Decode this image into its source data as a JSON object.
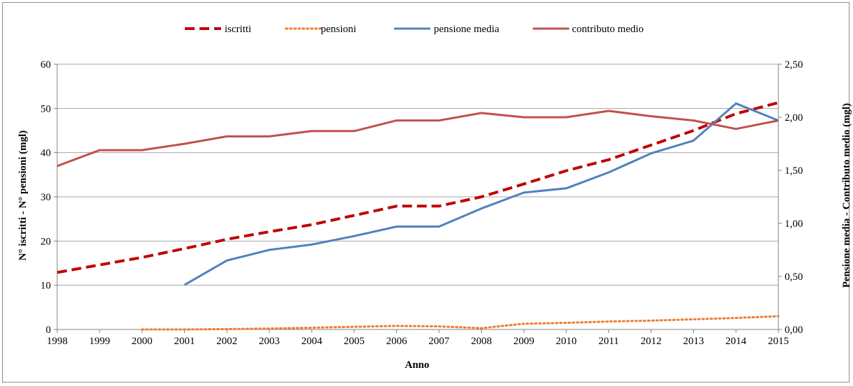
{
  "chart_data": {
    "type": "line",
    "xlabel": "Anno",
    "ylabel_left": "N° iscritti - N° pensioni (mgl)",
    "ylabel_right": "Pensione media - Contributo medio (mgl)",
    "x": [
      "1998",
      "1999",
      "2000",
      "2001",
      "2002",
      "2003",
      "2004",
      "2005",
      "2006",
      "2007",
      "2008",
      "2009",
      "2010",
      "2011",
      "2012",
      "2013",
      "2014",
      "2015"
    ],
    "ylim_left": [
      0,
      60
    ],
    "yticks_left": [
      "0",
      "10",
      "20",
      "30",
      "40",
      "50",
      "60"
    ],
    "ylim_right": [
      0,
      2.5
    ],
    "yticks_right": [
      "0,00",
      "0,50",
      "1,00",
      "1,50",
      "2,00",
      "2,50"
    ],
    "grid": true,
    "legend_position": "top",
    "series": [
      {
        "name": "iscritti",
        "axis": "left",
        "style": "dashed",
        "color": "#c00000",
        "values": [
          12.9,
          14.6,
          16.3,
          18.3,
          20.4,
          22.1,
          23.7,
          25.8,
          27.9,
          27.9,
          30.0,
          32.9,
          35.9,
          38.4,
          41.7,
          45.0,
          48.8,
          51.3
        ]
      },
      {
        "name": "pensioni",
        "axis": "left",
        "style": "dotted",
        "color": "#ed7d31",
        "values": [
          null,
          null,
          0.0,
          0.0,
          0.1,
          0.2,
          0.4,
          0.6,
          0.8,
          0.7,
          0.3,
          1.3,
          1.5,
          1.8,
          2.0,
          2.3,
          2.6,
          3.0
        ]
      },
      {
        "name": "pensione media",
        "axis": "right",
        "style": "solid",
        "color": "#4f81bd",
        "values": [
          null,
          null,
          null,
          0.42,
          0.65,
          0.75,
          0.8,
          0.88,
          0.97,
          0.97,
          1.14,
          1.29,
          1.33,
          1.48,
          1.66,
          1.78,
          2.13,
          1.97
        ]
      },
      {
        "name": "contributo medio",
        "axis": "right",
        "style": "solid",
        "color": "#c0504d",
        "values": [
          1.54,
          1.69,
          1.69,
          1.75,
          1.82,
          1.82,
          1.87,
          1.87,
          1.97,
          1.97,
          2.04,
          2.0,
          2.0,
          2.06,
          2.01,
          1.97,
          1.89,
          1.97
        ]
      }
    ]
  }
}
